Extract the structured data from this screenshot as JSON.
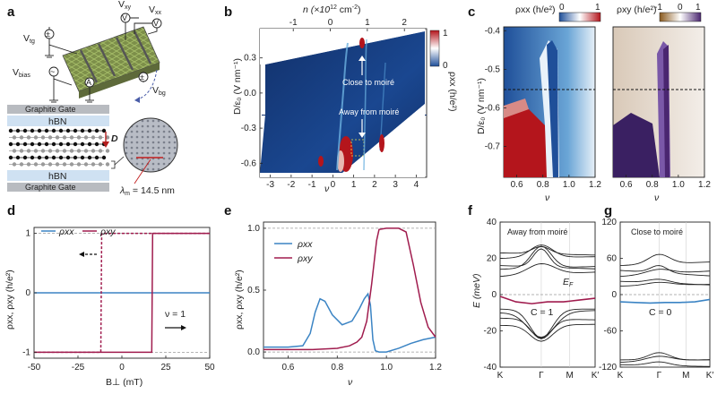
{
  "panels": {
    "a": {
      "label": "a",
      "v_tg": "V",
      "v_tg_sub": "tg",
      "v_xy": "V",
      "v_xy_sub": "xy",
      "v_xx": "V",
      "v_xx_sub": "xx",
      "v_bias": "V",
      "v_bias_sub": "bias",
      "v_bg": "V",
      "v_bg_sub": "bg",
      "meter_v": "V",
      "meter_a": "A",
      "gate_top": "Graphite Gate",
      "hbn_top": "hBN",
      "field_label": "D",
      "hbn_bottom": "hBN",
      "gate_bottom": "Graphite Gate",
      "lambda_label": "λ",
      "lambda_sub": "m",
      "lambda_value": " = 14.5 nm"
    },
    "b": {
      "label": "b",
      "top_axis_label": "n (×10",
      "top_axis_sup": "12",
      "top_axis_unit": " cm",
      "top_axis_sup2": "-2",
      "top_axis_close": ")",
      "xlabel": "ν",
      "ylabel": "D/ε₀ (V nm⁻¹)",
      "cbar_label": "ρxx (h/e²)",
      "annot_close": "Close to moiré",
      "annot_away": "Away from moiré",
      "x_ticks": [
        "-3",
        "-2",
        "-1",
        "0",
        "1",
        "2",
        "3",
        "4"
      ],
      "top_ticks": [
        "-1",
        "0",
        "1",
        "2"
      ],
      "y_ticks": [
        "0.3",
        "0.0",
        "-0.3",
        "-0.6"
      ],
      "cbar_ticks": [
        "1",
        "0"
      ]
    },
    "c": {
      "label": "c",
      "left_title": "ρxx (h/e²)",
      "left_cbar_ticks": [
        "0",
        "1"
      ],
      "right_title": "ρxy (h/e²)",
      "right_cbar_ticks": [
        "-1",
        "0",
        "1"
      ],
      "ylabel": "D/ε₀ (V nm⁻¹)",
      "xlabel": "ν",
      "y_ticks": [
        "-0.4",
        "-0.5",
        "-0.6",
        "-0.7"
      ],
      "x_ticks": [
        "0.6",
        "0.8",
        "1.0",
        "1.2"
      ]
    },
    "d": {
      "label": "d",
      "legend_xx": "ρxx",
      "legend_xy": "ρxy",
      "ylabel": "ρxx, ρxy (h/e²)",
      "xlabel": "B⊥ (mT)",
      "nu_label": "ν = 1",
      "x_ticks": [
        "-50",
        "-25",
        "0",
        "25",
        "50"
      ],
      "y_ticks": [
        "1",
        "0",
        "-1"
      ]
    },
    "e": {
      "label": "e",
      "legend_xx": "ρxx",
      "legend_xy": "ρxy",
      "ylabel": "ρxx, ρxy (h/e²)",
      "xlabel": "ν",
      "x_ticks": [
        "0.6",
        "0.8",
        "1.0",
        "1.2"
      ],
      "y_ticks": [
        "1.0",
        "0.5",
        "0.0"
      ]
    },
    "f": {
      "label": "f",
      "title": "Away from moiré",
      "ylabel": "E (meV)",
      "fermi_label": "E",
      "fermi_sub": "F",
      "chern": "C = 1",
      "k_labels": [
        "K",
        "Γ",
        "M",
        "K′"
      ],
      "y_ticks": [
        "40",
        "20",
        "0",
        "-20",
        "-40"
      ]
    },
    "g": {
      "label": "g",
      "title": "Close to moiré",
      "chern": "C = 0",
      "k_labels": [
        "K",
        "Γ",
        "M",
        "K′"
      ],
      "y_ticks": [
        "120",
        "60",
        "0",
        "-60",
        "-120"
      ]
    }
  },
  "colors": {
    "blue": "#3b84c4",
    "crimson": "#a01c4e",
    "grey_dash": "#9a9a9a",
    "navy_map": "#12316b",
    "red_map": "#b4151c",
    "purple_map": "#4a2670"
  },
  "chart_data": [
    {
      "panel": "d",
      "type": "line",
      "xlim": [
        -50,
        50
      ],
      "ylim": [
        -1.1,
        1.1
      ],
      "series": [
        {
          "name": "ρxx",
          "x": [
            -50,
            50
          ],
          "y": [
            0,
            0
          ]
        },
        {
          "name": "ρxy",
          "x": [
            -50,
            17,
            17.5,
            50
          ],
          "y": [
            -1,
            -1,
            1,
            1
          ]
        },
        {
          "name": "ρxy",
          "x": [
            50,
            -11.5,
            -12,
            -50
          ],
          "y": [
            1,
            1,
            -1,
            -1
          ]
        }
      ]
    },
    {
      "panel": "e",
      "type": "line",
      "xlim": [
        0.5,
        1.2
      ],
      "ylim": [
        -0.05,
        1.05
      ],
      "series": [
        {
          "name": "ρxx",
          "x": [
            0.5,
            0.6,
            0.66,
            0.69,
            0.71,
            0.73,
            0.75,
            0.78,
            0.82,
            0.86,
            0.89,
            0.91,
            0.925,
            0.935,
            0.945,
            0.955,
            0.97,
            1.0,
            1.05,
            1.1,
            1.15,
            1.2
          ],
          "y": [
            0.04,
            0.04,
            0.05,
            0.15,
            0.32,
            0.43,
            0.41,
            0.3,
            0.22,
            0.25,
            0.35,
            0.43,
            0.47,
            0.38,
            0.1,
            0.01,
            0.0,
            0.0,
            0.03,
            0.07,
            0.1,
            0.12
          ]
        },
        {
          "name": "ρxy",
          "x": [
            0.5,
            0.6,
            0.7,
            0.8,
            0.85,
            0.88,
            0.9,
            0.92,
            0.94,
            0.96,
            0.97,
            1.0,
            1.05,
            1.08,
            1.11,
            1.14,
            1.17,
            1.2
          ],
          "y": [
            0.02,
            0.02,
            0.02,
            0.03,
            0.05,
            0.08,
            0.12,
            0.25,
            0.55,
            0.9,
            0.99,
            1.0,
            1.0,
            0.97,
            0.7,
            0.4,
            0.2,
            0.12
          ]
        }
      ]
    },
    {
      "panel": "f",
      "type": "line",
      "xlim": [
        0,
        3
      ],
      "ylim": [
        -40,
        40
      ],
      "series": [
        {
          "name": "",
          "x": [
            0,
            0.5,
            1,
            1.5,
            2,
            2.5,
            3
          ],
          "y": [
            -1,
            -4,
            -5,
            -4,
            -4,
            -3,
            -2
          ]
        }
      ]
    },
    {
      "panel": "g",
      "type": "line",
      "xlim": [
        0,
        3
      ],
      "ylim": [
        -120,
        120
      ],
      "series": [
        {
          "name": "",
          "x": [
            0,
            0.5,
            1,
            1.5,
            2,
            2.5,
            3
          ],
          "y": [
            -12,
            -13,
            -14,
            -13,
            -13,
            -12,
            -8
          ]
        }
      ]
    }
  ]
}
